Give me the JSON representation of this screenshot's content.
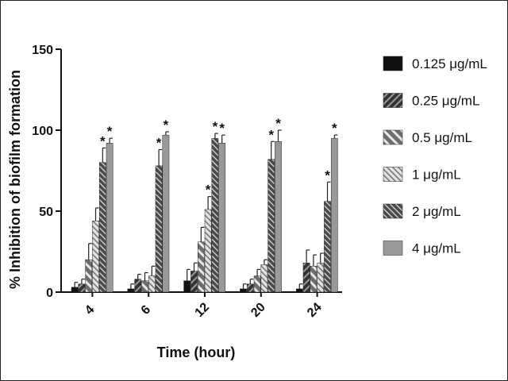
{
  "chart_data": {
    "type": "bar",
    "xlabel": "Time (hour)",
    "ylabel": "% Inhibition of biofilm formation",
    "categories": [
      "4",
      "6",
      "12",
      "20",
      "24"
    ],
    "ylim": [
      0,
      150
    ],
    "yticks": [
      "0",
      "50",
      "100",
      "150"
    ],
    "grid": false,
    "legend_position": "right",
    "series": [
      {
        "name": "0.125 μg/mL",
        "values": [
          3,
          2,
          7,
          2,
          2
        ],
        "errors": [
          3,
          3,
          7,
          3,
          3
        ],
        "sig": [
          "",
          "",
          "",
          "",
          ""
        ],
        "color": "#111111",
        "pattern": "solid"
      },
      {
        "name": "0.25 μg/mL",
        "values": [
          5,
          8,
          13,
          5,
          18
        ],
        "errors": [
          3,
          3,
          5,
          3,
          8
        ],
        "sig": [
          "",
          "",
          "",
          "",
          ""
        ],
        "color": "#555555",
        "pattern": "diag-dense"
      },
      {
        "name": "0.5 μg/mL",
        "values": [
          20,
          7,
          31,
          10,
          16
        ],
        "errors": [
          10,
          5,
          9,
          4,
          7
        ],
        "sig": [
          "",
          "",
          "",
          "",
          ""
        ],
        "color": "#6e6e6e",
        "pattern": "diag-wide"
      },
      {
        "name": "1 μg/mL",
        "values": [
          44,
          10,
          51,
          17,
          18
        ],
        "errors": [
          8,
          6,
          8,
          3,
          6
        ],
        "sig": [
          "",
          "",
          "*",
          "",
          ""
        ],
        "color": "#c8c8c8",
        "pattern": "diag-light"
      },
      {
        "name": "2 μg/mL",
        "values": [
          80,
          78,
          95,
          82,
          56
        ],
        "errors": [
          9,
          10,
          3,
          11,
          12
        ],
        "sig": [
          "*",
          "*",
          "*",
          "*",
          "*"
        ],
        "color": "#555555",
        "pattern": "diag-fine"
      },
      {
        "name": "4 μg/mL",
        "values": [
          92,
          97,
          92,
          93,
          95
        ],
        "errors": [
          3,
          2,
          5,
          7,
          2
        ],
        "sig": [
          "*",
          "*",
          "*",
          "*",
          "*"
        ],
        "color": "#999999",
        "pattern": "solid"
      }
    ]
  }
}
